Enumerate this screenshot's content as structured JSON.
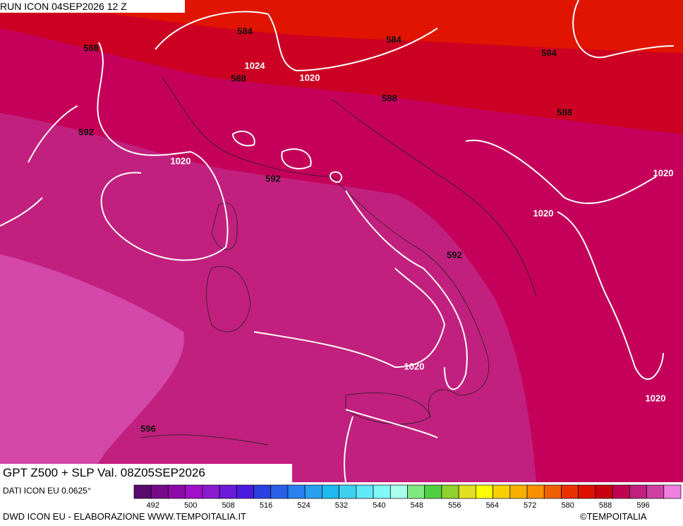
{
  "header": {
    "run": "RUN ICON 04SEP2026 12 Z",
    "product": "GPT Z500 + SLP Val. 08Z05SEP2026"
  },
  "contour_labels": [
    "588",
    "584",
    "1024",
    "588",
    "1020",
    "584",
    "588",
    "584",
    "588",
    "592",
    "1020",
    "592",
    "1020",
    "1020",
    "592",
    "1020",
    "1020",
    "596"
  ],
  "footer": {
    "data_source": "DATI ICON EU 0.0625°",
    "credit": "DWD ICON EU - ELABORAZIONE WWW.TEMPOITALIA.IT",
    "copyright": "©TEMPOITALIA"
  },
  "colorbar": {
    "colors": [
      "#5a0a6e",
      "#780a8a",
      "#8c0aa8",
      "#a010c8",
      "#8a1ad0",
      "#6a1ad8",
      "#4a1ae0",
      "#2a40e0",
      "#2a60e8",
      "#2a80f0",
      "#2aa0f0",
      "#20b8f0",
      "#40d0f0",
      "#60e8f8",
      "#80f8f8",
      "#a8fff0",
      "#80e880",
      "#50d040",
      "#90d030",
      "#e0e020",
      "#ffff00",
      "#f8d000",
      "#f8b000",
      "#f89000",
      "#f06000",
      "#e83000",
      "#e01000",
      "#c80010",
      "#c00050",
      "#c02080",
      "#d040a0",
      "#f080e0"
    ],
    "labels": [
      492,
      500,
      508,
      516,
      524,
      532,
      540,
      548,
      556,
      564,
      572,
      580,
      588,
      596
    ]
  }
}
